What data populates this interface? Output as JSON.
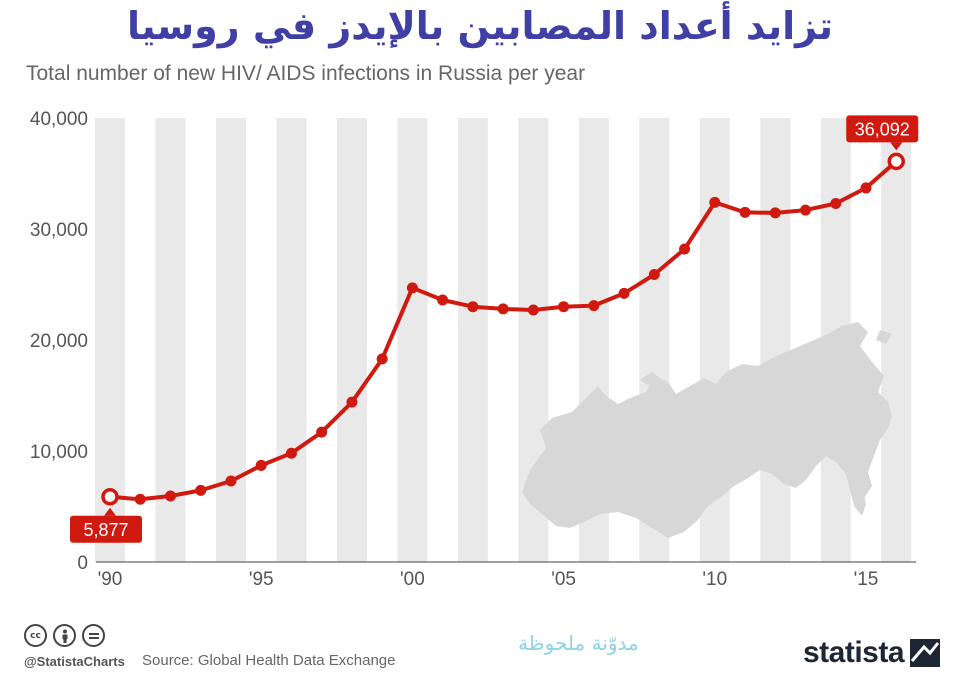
{
  "header": {
    "title": "تزايد أعداد المصابين بالإيدز في روسيا",
    "subtitle": "Total number of new HIV/ AIDS infections in Russia per year"
  },
  "footer": {
    "handle": "@StatistaCharts",
    "source": "Source: Global Health Data Exchange",
    "watermark": "مدوّنة ملحوظة",
    "brand": "statista",
    "icons": [
      "cc-icon",
      "by-icon",
      "nd-icon"
    ]
  },
  "colors": {
    "line": "#d11a0f",
    "stripe": "#e9e9e9",
    "map": "#d7d7d7",
    "title": "#3f3fa6"
  },
  "chart_data": {
    "type": "line",
    "ylim": [
      0,
      40000
    ],
    "yticks": [
      0,
      10000,
      20000,
      30000,
      40000
    ],
    "ytick_labels": [
      "0",
      "10,000",
      "20,000",
      "30,000",
      "40,000"
    ],
    "xtick_years": [
      1990,
      1995,
      2000,
      2005,
      2010,
      2015
    ],
    "xtick_labels": [
      "'90",
      "'95",
      "'00",
      "'05",
      "'10",
      "'15"
    ],
    "x": [
      1990,
      1991,
      1992,
      1993,
      1994,
      1995,
      1996,
      1997,
      1998,
      1999,
      2000,
      2001,
      2002,
      2003,
      2004,
      2005,
      2006,
      2007,
      2008,
      2009,
      2010,
      2011,
      2012,
      2013,
      2014,
      2015,
      2016
    ],
    "series": [
      {
        "values": [
          5877,
          5650,
          5950,
          6450,
          7300,
          8700,
          9800,
          11700,
          14400,
          18300,
          24700,
          23600,
          23000,
          22800,
          22700,
          23000,
          23100,
          24200,
          25900,
          28200,
          32400,
          31500,
          31450,
          31700,
          32300,
          33700,
          36092
        ]
      }
    ],
    "annotations": [
      {
        "year": 1990,
        "value": 5877,
        "label": "5,877"
      },
      {
        "year": 2016,
        "value": 36092,
        "label": "36,092"
      }
    ],
    "grid": "alternating vertical stripes per year",
    "legend": "none"
  }
}
